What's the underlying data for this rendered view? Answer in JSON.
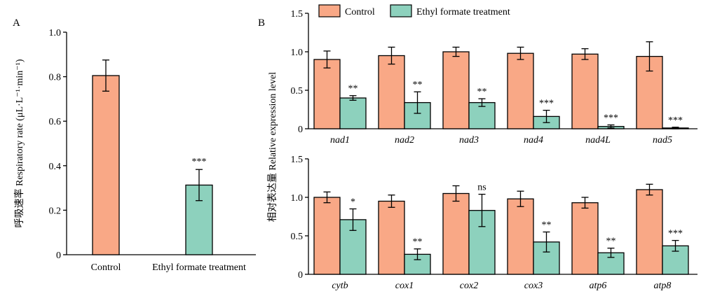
{
  "colors": {
    "control": "#f9a886",
    "treatment": "#8dd1bd",
    "stroke": "#000000"
  },
  "chart_data": [
    {
      "panel": "A",
      "type": "bar",
      "categories": [
        "Control",
        "Ethyl formate treatment"
      ],
      "values": [
        0.805,
        0.313
      ],
      "errors": [
        0.07,
        0.07
      ],
      "significance": [
        "",
        "***"
      ],
      "ylabel_cn": "呼吸速率",
      "ylabel": "Respiratory rate (μL·L⁻¹·min⁻¹)",
      "ylim": [
        0,
        1.0
      ],
      "yticks": [
        "0",
        "0.2",
        "0.4",
        "0.6",
        "0.8",
        "1.0"
      ]
    },
    {
      "panel": "B",
      "type": "bar",
      "ylabel_cn": "相对表达量",
      "ylabel": "Relative expression level",
      "legend": [
        "Control",
        "Ethyl formate treatment"
      ],
      "legend_position": "top",
      "ylim": [
        0,
        1.5
      ],
      "yticks": [
        "0",
        "0.5",
        "1.0",
        "1.5"
      ],
      "rows": [
        {
          "categories": [
            "nad1",
            "nad2",
            "nad3",
            "nad4",
            "nad4L",
            "nad5"
          ],
          "series": [
            {
              "name": "Control",
              "values": [
                0.9,
                0.95,
                1.0,
                0.98,
                0.97,
                0.94
              ],
              "errors": [
                0.11,
                0.11,
                0.06,
                0.08,
                0.07,
                0.19
              ]
            },
            {
              "name": "Ethyl formate treatment",
              "values": [
                0.4,
                0.34,
                0.34,
                0.16,
                0.03,
                0.01
              ],
              "errors": [
                0.03,
                0.14,
                0.05,
                0.08,
                0.02,
                0.01
              ]
            }
          ],
          "significance": [
            "**",
            "**",
            "**",
            "***",
            "***",
            "***"
          ]
        },
        {
          "categories": [
            "cytb",
            "cox1",
            "cox2",
            "cox3",
            "atp6",
            "atp8"
          ],
          "series": [
            {
              "name": "Control",
              "values": [
                1.0,
                0.95,
                1.05,
                0.98,
                0.93,
                1.1
              ],
              "errors": [
                0.07,
                0.08,
                0.1,
                0.1,
                0.07,
                0.07
              ]
            },
            {
              "name": "Ethyl formate treatment",
              "values": [
                0.71,
                0.26,
                0.83,
                0.42,
                0.28,
                0.37
              ],
              "errors": [
                0.14,
                0.07,
                0.21,
                0.13,
                0.06,
                0.07
              ]
            }
          ],
          "significance": [
            "*",
            "**",
            "ns",
            "**",
            "**",
            "***"
          ]
        }
      ]
    }
  ]
}
